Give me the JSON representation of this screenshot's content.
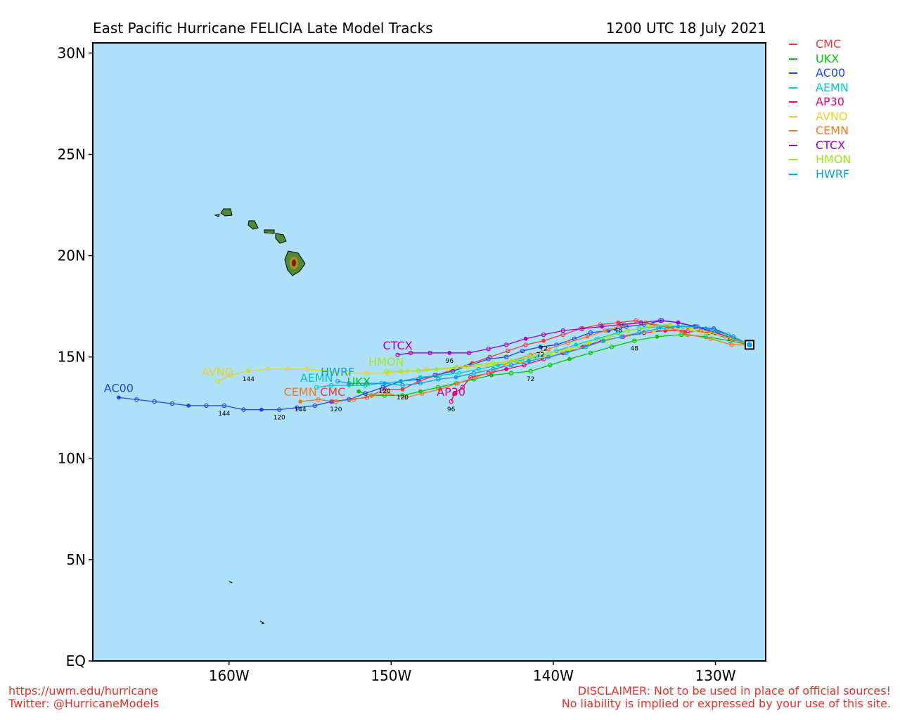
{
  "header": {
    "title": "East Pacific Hurricane FELICIA Late Model Tracks",
    "timestamp": "1200 UTC 18 July 2021"
  },
  "footer": {
    "url": "https://uwm.edu/hurricane",
    "twitter": "Twitter: @HurricaneModels",
    "disclaimer_1": "DISCLAIMER: Not to be used in place of official sources!",
    "disclaimer_2": "No liability is implied or expressed by your use of this site."
  },
  "colors": {
    "ocean": "#aee0fa",
    "land": "#4f8a34",
    "frame": "#000000"
  },
  "legend": [
    {
      "name": "CMC",
      "color": "#f03a3a"
    },
    {
      "name": "UKX",
      "color": "#00c800"
    },
    {
      "name": "AC00",
      "color": "#1e46f0"
    },
    {
      "name": "AEMN",
      "color": "#00c8c8"
    },
    {
      "name": "AP30",
      "color": "#e6007a"
    },
    {
      "name": "AVNO",
      "color": "#e6d22d"
    },
    {
      "name": "CEMN",
      "color": "#f07828"
    },
    {
      "name": "CTCX",
      "color": "#a000c8"
    },
    {
      "name": "HMON",
      "color": "#a0e61e"
    },
    {
      "name": "HWRF",
      "color": "#0aa0e6"
    }
  ],
  "chart_data": {
    "type": "map",
    "projection": "lat-lon",
    "xlim": [
      -168.4,
      -126.9
    ],
    "ylim": [
      0,
      30.5
    ],
    "lon_ticks": [
      {
        "value": -160,
        "label": "160W"
      },
      {
        "value": -150,
        "label": "150W"
      },
      {
        "value": -140,
        "label": "140W"
      },
      {
        "value": -130,
        "label": "130W"
      }
    ],
    "lat_ticks": [
      {
        "value": 0,
        "label": "EQ"
      },
      {
        "value": 5,
        "label": "5N"
      },
      {
        "value": 10,
        "label": "10N"
      },
      {
        "value": 15,
        "label": "15N"
      },
      {
        "value": 20,
        "label": "20N"
      },
      {
        "value": 25,
        "label": "25N"
      },
      {
        "value": 30,
        "label": "30N"
      }
    ],
    "start": {
      "lon": -127.9,
      "lat": 15.6
    },
    "tracks": [
      {
        "name": "CMC",
        "color": "#f03a3a",
        "points": [
          [
            -127.9,
            15.6
          ],
          [
            -128.9,
            15.9
          ],
          [
            -129.9,
            16.2
          ],
          [
            -130.9,
            16.3
          ],
          [
            -131.9,
            16.2
          ],
          [
            -132.9,
            16.5
          ],
          [
            -133.9,
            16.6
          ],
          [
            -134.9,
            16.8
          ],
          [
            -136.0,
            16.7
          ],
          [
            -137.1,
            16.6
          ],
          [
            -138.3,
            16.4
          ],
          [
            -139.4,
            16.1
          ],
          [
            -140.6,
            15.8
          ],
          [
            -141.7,
            15.6
          ],
          [
            -142.8,
            15.3
          ],
          [
            -143.9,
            15.0
          ],
          [
            -145.0,
            14.7
          ],
          [
            -146.1,
            14.4
          ],
          [
            -147.2,
            14.1
          ],
          [
            -148.3,
            13.8
          ],
          [
            -149.3,
            13.4
          ],
          [
            -150.4,
            13.4
          ],
          [
            -151.5,
            13.0
          ],
          [
            -152.6,
            12.9
          ],
          [
            -153.6,
            12.8
          ]
        ],
        "labels": [
          {
            "i": 8,
            "text": "48"
          },
          {
            "i": 12,
            "text": "72"
          },
          {
            "i": 20,
            "text": "120"
          }
        ],
        "end_label": "CMC"
      },
      {
        "name": "UKX",
        "color": "#00c800",
        "points": [
          [
            -127.9,
            15.6
          ],
          [
            -129.1,
            15.8
          ],
          [
            -130.6,
            16.0
          ],
          [
            -132.1,
            16.1
          ],
          [
            -133.6,
            16.0
          ],
          [
            -135.0,
            15.8
          ],
          [
            -136.4,
            15.5
          ],
          [
            -137.7,
            15.2
          ],
          [
            -139.0,
            14.9
          ],
          [
            -140.2,
            14.6
          ],
          [
            -141.4,
            14.3
          ],
          [
            -142.6,
            14.2
          ],
          [
            -143.8,
            14.1
          ],
          [
            -144.9,
            13.9
          ],
          [
            -146.0,
            13.7
          ],
          [
            -147.1,
            13.5
          ],
          [
            -148.2,
            13.3
          ],
          [
            -149.3,
            13.1
          ],
          [
            -150.4,
            13.1
          ],
          [
            -151.2,
            13.1
          ],
          [
            -152.0,
            13.3
          ]
        ],
        "labels": [
          {
            "i": 5,
            "text": "48"
          },
          {
            "i": 10,
            "text": "72"
          }
        ],
        "end_label": "UKX"
      },
      {
        "name": "AC00",
        "color": "#1e46f0",
        "points": [
          [
            -127.9,
            15.6
          ],
          [
            -128.9,
            16.0
          ],
          [
            -130.1,
            16.4
          ],
          [
            -131.3,
            16.5
          ],
          [
            -132.3,
            16.7
          ],
          [
            -133.3,
            16.8
          ],
          [
            -134.4,
            16.6
          ],
          [
            -135.5,
            16.5
          ],
          [
            -136.6,
            16.3
          ],
          [
            -137.7,
            16.2
          ],
          [
            -138.7,
            15.9
          ],
          [
            -139.8,
            15.6
          ],
          [
            -140.8,
            15.5
          ],
          [
            -141.9,
            15.3
          ],
          [
            -142.9,
            15.0
          ],
          [
            -144.0,
            14.9
          ],
          [
            -145.1,
            14.6
          ],
          [
            -146.2,
            14.3
          ],
          [
            -147.3,
            14.1
          ],
          [
            -148.3,
            13.9
          ],
          [
            -149.4,
            13.8
          ],
          [
            -150.5,
            13.5
          ],
          [
            -151.6,
            13.2
          ],
          [
            -152.6,
            12.9
          ],
          [
            -153.7,
            12.8
          ],
          [
            -154.7,
            12.6
          ],
          [
            -155.8,
            12.5
          ],
          [
            -156.9,
            12.4
          ],
          [
            -158.0,
            12.4
          ],
          [
            -159.1,
            12.4
          ],
          [
            -160.3,
            12.6
          ],
          [
            -161.4,
            12.6
          ],
          [
            -162.5,
            12.6
          ],
          [
            -163.5,
            12.7
          ],
          [
            -164.6,
            12.8
          ],
          [
            -165.7,
            12.9
          ],
          [
            -166.8,
            13.0
          ]
        ],
        "labels": [
          {
            "i": 12,
            "text": "72"
          },
          {
            "i": 27,
            "text": "120"
          },
          {
            "i": 30,
            "text": "144"
          }
        ],
        "end_label": "AC00"
      },
      {
        "name": "AEMN",
        "color": "#00c8c8",
        "points": [
          [
            -127.9,
            15.6
          ],
          [
            -129.2,
            16.1
          ],
          [
            -130.6,
            16.4
          ],
          [
            -132.0,
            16.5
          ],
          [
            -133.4,
            16.5
          ],
          [
            -134.7,
            16.4
          ],
          [
            -136.0,
            16.2
          ],
          [
            -137.3,
            15.9
          ],
          [
            -138.6,
            15.6
          ],
          [
            -139.8,
            15.3
          ],
          [
            -141.0,
            15.0
          ],
          [
            -142.2,
            14.8
          ],
          [
            -143.4,
            14.6
          ],
          [
            -144.6,
            14.4
          ],
          [
            -145.8,
            14.2
          ],
          [
            -147.0,
            14.1
          ],
          [
            -148.2,
            14.0
          ],
          [
            -149.4,
            13.8
          ],
          [
            -150.6,
            13.7
          ],
          [
            -151.6,
            13.6
          ],
          [
            -152.6,
            13.6
          ],
          [
            -153.7,
            13.6
          ],
          [
            -154.6,
            13.5
          ]
        ],
        "labels": [],
        "end_label": "AEMN"
      },
      {
        "name": "AP30",
        "color": "#e6007a",
        "points": [
          [
            -127.9,
            15.6
          ],
          [
            -129.1,
            15.9
          ],
          [
            -130.4,
            16.2
          ],
          [
            -131.7,
            16.3
          ],
          [
            -133.1,
            16.3
          ],
          [
            -134.4,
            16.2
          ],
          [
            -135.7,
            16.0
          ],
          [
            -137.0,
            15.8
          ],
          [
            -138.2,
            15.5
          ],
          [
            -139.4,
            15.2
          ],
          [
            -140.6,
            14.9
          ],
          [
            -141.8,
            14.6
          ],
          [
            -142.9,
            14.4
          ],
          [
            -144.0,
            14.2
          ],
          [
            -145.1,
            14.0
          ],
          [
            -145.6,
            13.5
          ],
          [
            -146.1,
            13.2
          ],
          [
            -146.3,
            12.8
          ]
        ],
        "labels": [
          {
            "i": 17,
            "text": "96"
          }
        ],
        "end_label": "AP30"
      },
      {
        "name": "AVNO",
        "color": "#e6d22d",
        "points": [
          [
            -127.9,
            15.6
          ],
          [
            -129.3,
            16.0
          ],
          [
            -130.8,
            16.2
          ],
          [
            -132.3,
            16.4
          ],
          [
            -133.8,
            16.3
          ],
          [
            -135.3,
            16.1
          ],
          [
            -136.7,
            15.8
          ],
          [
            -138.0,
            15.5
          ],
          [
            -139.3,
            15.3
          ],
          [
            -140.5,
            15.0
          ],
          [
            -141.7,
            14.8
          ],
          [
            -142.9,
            14.7
          ],
          [
            -144.1,
            14.6
          ],
          [
            -145.3,
            14.5
          ],
          [
            -146.5,
            14.4
          ],
          [
            -147.8,
            14.4
          ],
          [
            -149.0,
            14.3
          ],
          [
            -150.2,
            14.2
          ],
          [
            -151.5,
            14.2
          ],
          [
            -152.7,
            14.2
          ],
          [
            -154.0,
            14.3
          ],
          [
            -155.2,
            14.4
          ],
          [
            -156.4,
            14.4
          ],
          [
            -157.6,
            14.4
          ],
          [
            -158.8,
            14.3
          ],
          [
            -159.9,
            14.1
          ],
          [
            -160.7,
            13.8
          ]
        ],
        "labels": [
          {
            "i": 24,
            "text": "144"
          }
        ],
        "end_label": "AVNO"
      },
      {
        "name": "CEMN",
        "color": "#f07828",
        "points": [
          [
            -127.9,
            15.6
          ],
          [
            -129.0,
            15.6
          ],
          [
            -130.3,
            15.9
          ],
          [
            -131.7,
            16.1
          ],
          [
            -133.0,
            16.5
          ],
          [
            -134.3,
            16.7
          ],
          [
            -135.6,
            16.6
          ],
          [
            -136.8,
            16.3
          ],
          [
            -137.9,
            16.0
          ],
          [
            -139.1,
            15.7
          ],
          [
            -140.3,
            15.4
          ],
          [
            -141.4,
            15.1
          ],
          [
            -142.6,
            14.8
          ],
          [
            -143.7,
            14.3
          ],
          [
            -144.8,
            14.0
          ],
          [
            -145.9,
            13.7
          ],
          [
            -147.0,
            13.4
          ],
          [
            -148.1,
            13.2
          ],
          [
            -149.1,
            13.0
          ],
          [
            -150.2,
            13.2
          ],
          [
            -151.2,
            13.1
          ],
          [
            -152.3,
            12.9
          ],
          [
            -153.4,
            12.8
          ],
          [
            -154.5,
            12.9
          ],
          [
            -155.6,
            12.8
          ]
        ],
        "labels": [
          {
            "i": 22,
            "text": "120"
          },
          {
            "i": 24,
            "text": "144"
          }
        ],
        "end_label": "CEMN"
      },
      {
        "name": "CTCX",
        "color": "#a000c8",
        "points": [
          [
            -127.9,
            15.6
          ],
          [
            -128.9,
            15.9
          ],
          [
            -130.0,
            16.2
          ],
          [
            -131.2,
            16.5
          ],
          [
            -132.3,
            16.7
          ],
          [
            -133.4,
            16.8
          ],
          [
            -134.6,
            16.7
          ],
          [
            -135.8,
            16.6
          ],
          [
            -137.0,
            16.5
          ],
          [
            -138.2,
            16.4
          ],
          [
            -139.4,
            16.3
          ],
          [
            -140.6,
            16.1
          ],
          [
            -141.7,
            15.9
          ],
          [
            -142.9,
            15.6
          ],
          [
            -144.0,
            15.4
          ],
          [
            -145.2,
            15.2
          ],
          [
            -146.4,
            15.2
          ],
          [
            -147.6,
            15.2
          ],
          [
            -148.8,
            15.2
          ],
          [
            -149.6,
            15.1
          ]
        ],
        "labels": [
          {
            "i": 16,
            "text": "96"
          }
        ],
        "end_label": "CTCX"
      },
      {
        "name": "HMON",
        "color": "#a0e61e",
        "points": [
          [
            -127.9,
            15.6
          ],
          [
            -129.0,
            15.9
          ],
          [
            -130.2,
            16.2
          ],
          [
            -131.5,
            16.4
          ],
          [
            -132.8,
            16.6
          ],
          [
            -134.1,
            16.5
          ],
          [
            -135.4,
            16.3
          ],
          [
            -136.6,
            16.0
          ],
          [
            -137.8,
            15.7
          ],
          [
            -139.0,
            15.4
          ],
          [
            -140.2,
            15.2
          ],
          [
            -141.4,
            15.0
          ],
          [
            -142.6,
            14.8
          ],
          [
            -143.7,
            14.7
          ],
          [
            -144.9,
            14.6
          ],
          [
            -146.0,
            14.5
          ],
          [
            -147.2,
            14.4
          ],
          [
            -148.3,
            14.3
          ],
          [
            -149.4,
            14.3
          ],
          [
            -150.3,
            14.3
          ]
        ],
        "labels": [],
        "end_label": "HMON"
      },
      {
        "name": "HWRF",
        "color": "#0aa0e6",
        "points": [
          [
            -127.9,
            15.6
          ],
          [
            -128.9,
            16.0
          ],
          [
            -130.0,
            16.3
          ],
          [
            -131.1,
            16.5
          ],
          [
            -132.3,
            16.5
          ],
          [
            -133.5,
            16.4
          ],
          [
            -134.7,
            16.2
          ],
          [
            -135.8,
            16.0
          ],
          [
            -136.9,
            15.8
          ],
          [
            -138.0,
            15.5
          ],
          [
            -139.2,
            15.2
          ],
          [
            -140.3,
            15.0
          ],
          [
            -141.5,
            14.8
          ],
          [
            -142.6,
            14.6
          ],
          [
            -143.7,
            14.4
          ],
          [
            -144.9,
            14.2
          ],
          [
            -146.0,
            14.0
          ],
          [
            -147.1,
            13.9
          ],
          [
            -148.2,
            13.7
          ],
          [
            -149.3,
            13.6
          ],
          [
            -150.4,
            13.7
          ],
          [
            -151.5,
            13.7
          ],
          [
            -152.6,
            13.7
          ],
          [
            -153.3,
            13.8
          ]
        ],
        "labels": [
          {
            "i": 20,
            "text": "120"
          }
        ],
        "end_label": "HWRF"
      }
    ]
  }
}
